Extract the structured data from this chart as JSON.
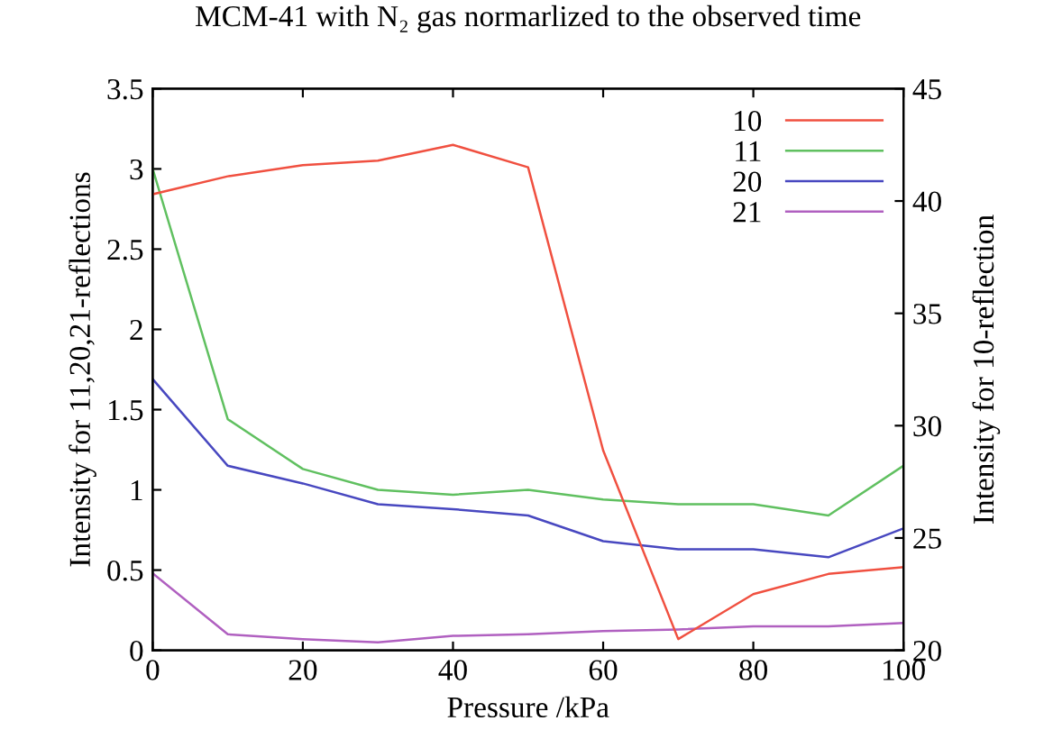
{
  "chart_data": {
    "type": "line",
    "title": "MCM-41 with N₂ gas normarlized to the observed time",
    "xlabel": "Pressure /kPa",
    "ylabel": "Intensity for 11,20,21-reflections",
    "y2label": "Intensity for 10-reflection",
    "x": [
      0,
      10,
      20,
      30,
      40,
      50,
      60,
      70,
      80,
      90,
      100
    ],
    "series": [
      {
        "name": "10",
        "color": "#f05040",
        "axis": "y2",
        "values": [
          40.3,
          41.1,
          41.6,
          41.8,
          42.5,
          41.5,
          28.9,
          20.5,
          22.5,
          23.4,
          23.7
        ]
      },
      {
        "name": "11",
        "color": "#60c060",
        "values": [
          3.0,
          1.44,
          1.13,
          1.0,
          0.97,
          1.0,
          0.94,
          0.91,
          0.91,
          0.84,
          1.15
        ]
      },
      {
        "name": "20",
        "color": "#4848c0",
        "values": [
          1.69,
          1.15,
          1.04,
          0.91,
          0.88,
          0.84,
          0.68,
          0.63,
          0.63,
          0.58,
          0.76
        ]
      },
      {
        "name": "21",
        "color": "#b060c0",
        "values": [
          0.48,
          0.1,
          0.07,
          0.05,
          0.09,
          0.1,
          0.12,
          0.13,
          0.15,
          0.15,
          0.17
        ]
      }
    ],
    "xlim": [
      0,
      100
    ],
    "xticks": [
      0,
      20,
      40,
      60,
      80,
      100
    ],
    "ylim": [
      0,
      3.5
    ],
    "yticks": [
      0,
      0.5,
      1,
      1.5,
      2,
      2.5,
      3,
      3.5
    ],
    "y2lim": [
      20,
      45
    ],
    "y2ticks": [
      20,
      25,
      30,
      35,
      40,
      45
    ],
    "legend": "top right",
    "grid": false,
    "marker": "none",
    "line_style": "solid"
  }
}
